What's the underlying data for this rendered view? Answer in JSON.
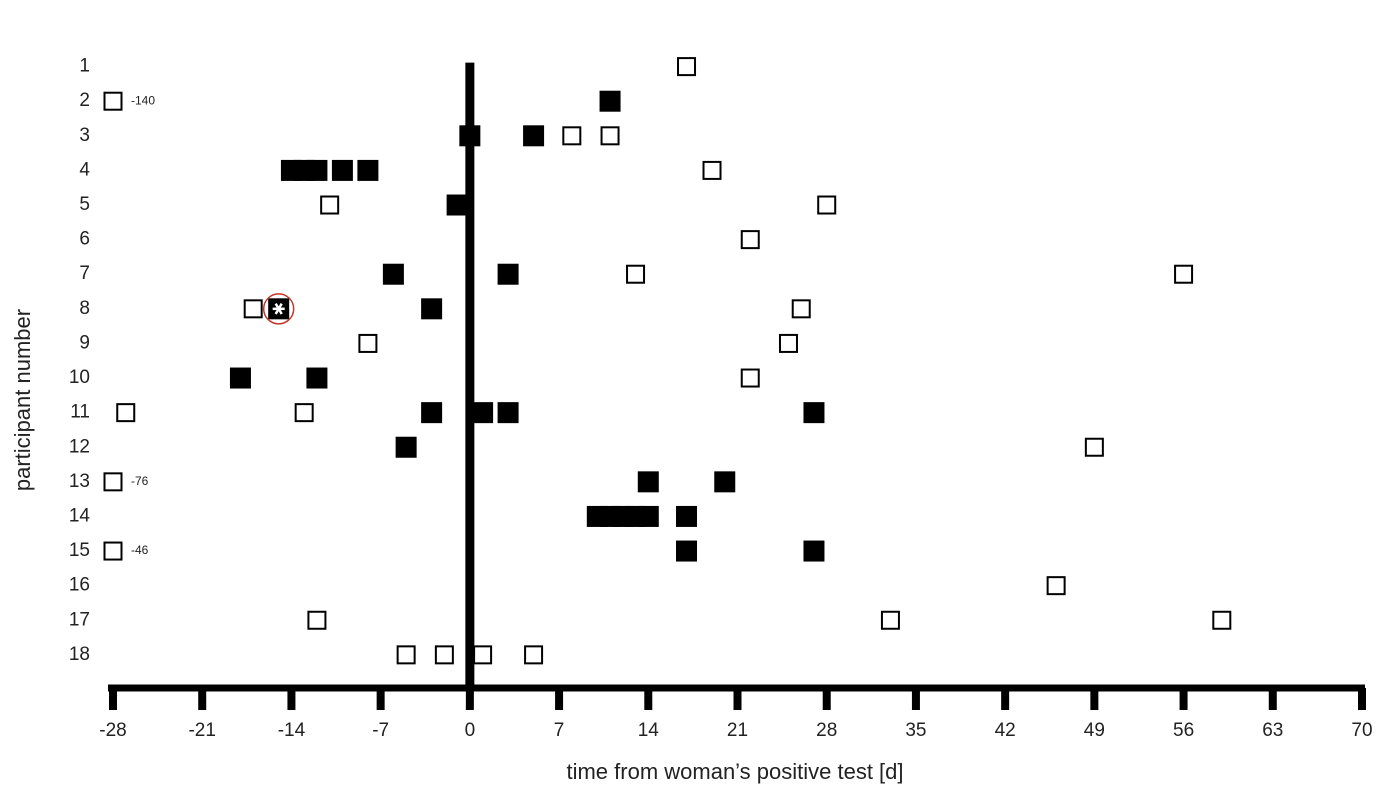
{
  "chart_data": {
    "type": "scatter",
    "x_label": "time from woman’s positive test [d]",
    "y_label": "participant number",
    "xlim": [
      -28,
      70
    ],
    "xticks": [
      -28,
      -21,
      -14,
      -7,
      0,
      7,
      14,
      21,
      28,
      35,
      42,
      49,
      56,
      63,
      70
    ],
    "ylim": [
      18.9,
      0
    ],
    "yticks": [
      1,
      2,
      3,
      4,
      5,
      6,
      7,
      8,
      9,
      10,
      11,
      12,
      13,
      14,
      15,
      16,
      17,
      18
    ],
    "zero_line": true,
    "series": [
      {
        "marker": "open",
        "color": "#000000",
        "x": [
          17,
          -28,
          8,
          11,
          19,
          -11,
          28,
          22,
          13,
          56,
          -17,
          26,
          -8,
          25,
          22,
          -27,
          -13,
          49,
          -28,
          -28,
          46,
          -12,
          33,
          59,
          -5,
          -2,
          1,
          5
        ],
        "y": [
          1,
          2,
          3,
          3,
          4,
          5,
          5,
          6,
          7,
          7,
          8,
          8,
          9,
          9,
          10,
          11,
          11,
          12,
          13,
          15,
          16,
          17,
          17,
          17,
          18,
          18,
          18,
          18
        ],
        "notes": [
          null,
          "-140",
          null,
          null,
          null,
          null,
          null,
          null,
          null,
          null,
          null,
          null,
          null,
          null,
          null,
          null,
          null,
          null,
          "-76",
          "-46",
          null,
          null,
          null,
          null,
          null,
          null,
          null,
          null
        ]
      },
      {
        "marker": "filled",
        "color": "#000000",
        "x": [
          11,
          0,
          5,
          -14,
          -13,
          -12,
          -10,
          -8,
          -1,
          -6,
          3,
          -3,
          -18,
          -12,
          -3,
          1,
          3,
          27,
          -5,
          14,
          20,
          10,
          11,
          12,
          13,
          14,
          17,
          17,
          27
        ],
        "y": [
          2,
          3,
          3,
          4,
          4,
          4,
          4,
          4,
          5,
          7,
          7,
          8,
          10,
          10,
          11,
          11,
          11,
          11,
          12,
          13,
          13,
          14,
          14,
          14,
          14,
          14,
          14,
          15,
          15
        ]
      },
      {
        "marker": "asterisk",
        "color": "#000000",
        "ring_color": "#c0392b",
        "x": [
          -15
        ],
        "y": [
          8
        ]
      }
    ]
  }
}
